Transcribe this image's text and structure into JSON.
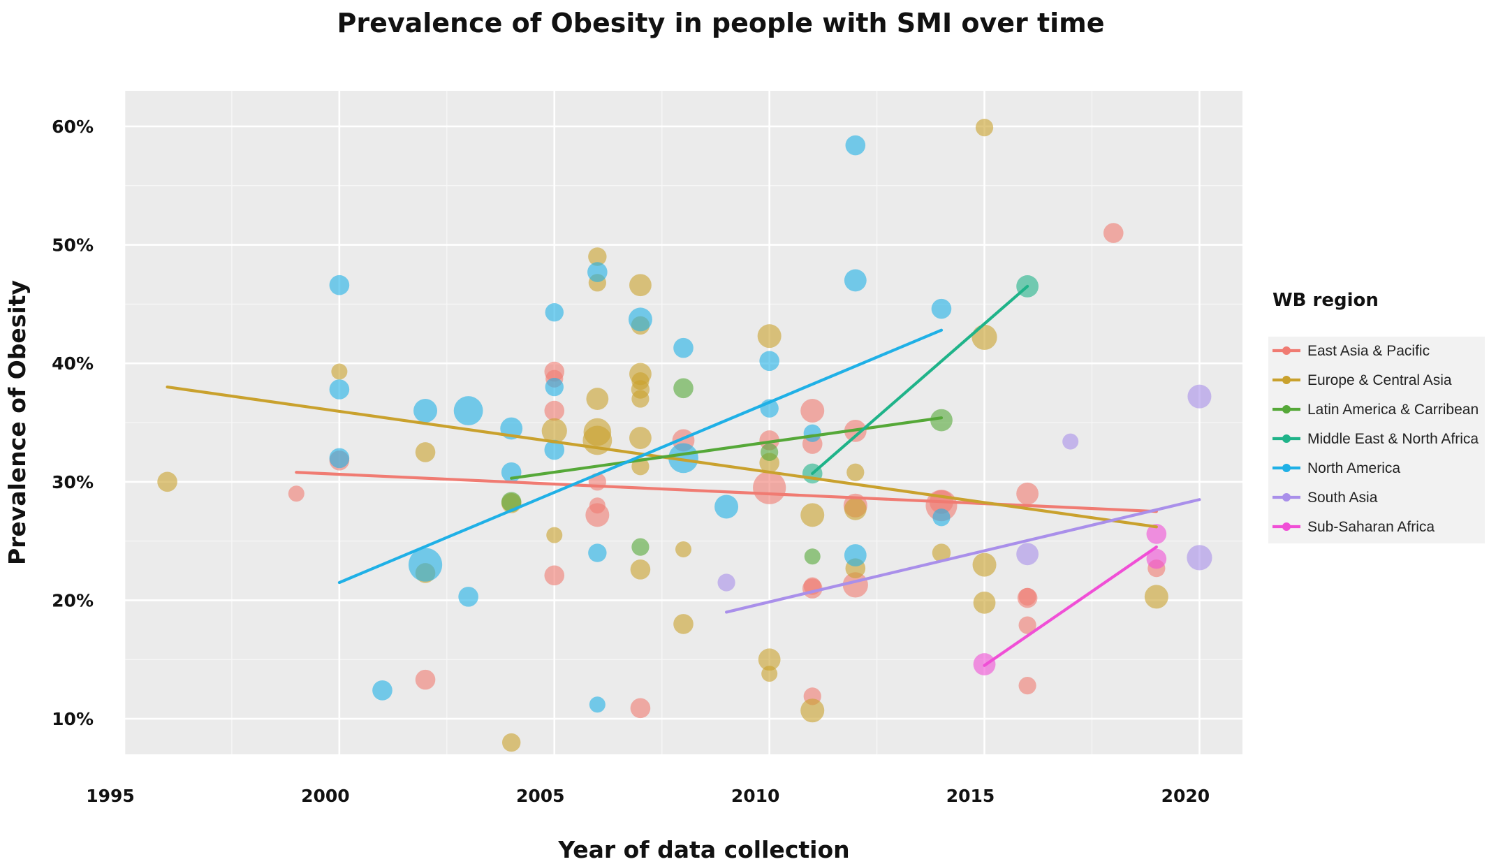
{
  "chart_data": {
    "type": "scatter",
    "title": "Prevalence of Obesity in people with SMI over time",
    "xlabel": "Year of data collection",
    "ylabel": "Prevalence of Obesity",
    "xlim": [
      1995,
      2021
    ],
    "ylim": [
      0.07,
      0.63
    ],
    "x_ticks": [
      1995,
      2000,
      2005,
      2010,
      2015,
      2020
    ],
    "x_tick_labels": [
      "1995",
      "2000",
      "2005",
      "2010",
      "2015",
      "2020"
    ],
    "y_ticks": [
      0.1,
      0.2,
      0.3,
      0.4,
      0.5,
      0.6
    ],
    "y_tick_labels": [
      "10%",
      "20%",
      "30%",
      "40%",
      "50%",
      "60%"
    ],
    "grid": true,
    "legend_title": "WB region",
    "legend_position": "right",
    "series": [
      {
        "name": "East Asia & Pacific",
        "color": "#f07b72",
        "trend": [
          [
            1999,
            0.308
          ],
          [
            2019,
            0.275
          ]
        ],
        "points": [
          [
            1999,
            0.29,
            1
          ],
          [
            2000,
            0.318,
            1.5
          ],
          [
            2002,
            0.133,
            1.5
          ],
          [
            2005,
            0.393,
            1.5
          ],
          [
            2005,
            0.387,
            1.2
          ],
          [
            2005,
            0.36,
            1.5
          ],
          [
            2005,
            0.221,
            1.5
          ],
          [
            2006,
            0.3,
            1.2
          ],
          [
            2006,
            0.272,
            2
          ],
          [
            2006,
            0.28,
            1
          ],
          [
            2007,
            0.109,
            1.5
          ],
          [
            2008,
            0.335,
            1.8
          ],
          [
            2010,
            0.335,
            1.5
          ],
          [
            2010,
            0.295,
            3.2
          ],
          [
            2011,
            0.36,
            2
          ],
          [
            2011,
            0.332,
            1.5
          ],
          [
            2011,
            0.21,
            1.5
          ],
          [
            2011,
            0.212,
            1.2
          ],
          [
            2011,
            0.119,
            1.2
          ],
          [
            2012,
            0.343,
            1.8
          ],
          [
            2012,
            0.28,
            2
          ],
          [
            2012,
            0.213,
            2.2
          ],
          [
            2014,
            0.28,
            3
          ],
          [
            2014,
            0.283,
            2
          ],
          [
            2016,
            0.29,
            1.8
          ],
          [
            2016,
            0.202,
            1.5
          ],
          [
            2016,
            0.203,
            1.2
          ],
          [
            2016,
            0.179,
            1.2
          ],
          [
            2016,
            0.128,
            1.2
          ],
          [
            2018,
            0.51,
            1.5
          ],
          [
            2019,
            0.227,
            1.2
          ]
        ]
      },
      {
        "name": "Europe & Central Asia",
        "color": "#c9a12d",
        "trend": [
          [
            1996,
            0.38
          ],
          [
            2019,
            0.262
          ]
        ],
        "points": [
          [
            1996,
            0.3,
            1.5
          ],
          [
            2000,
            0.393,
            1
          ],
          [
            2002,
            0.325,
            1.5
          ],
          [
            2002,
            0.223,
            1.5
          ],
          [
            2004,
            0.282,
            1.5
          ],
          [
            2004,
            0.08,
            1.3
          ],
          [
            2005,
            0.343,
            2.2
          ],
          [
            2005,
            0.255,
            1
          ],
          [
            2006,
            0.49,
            1.3
          ],
          [
            2006,
            0.468,
            1.2
          ],
          [
            2006,
            0.37,
            1.8
          ],
          [
            2006,
            0.342,
            2.5
          ],
          [
            2006,
            0.335,
            2.7
          ],
          [
            2007,
            0.466,
            1.8
          ],
          [
            2007,
            0.432,
            1.3
          ],
          [
            2007,
            0.391,
            1.8
          ],
          [
            2007,
            0.385,
            1.2
          ],
          [
            2007,
            0.378,
            1.3
          ],
          [
            2007,
            0.37,
            1.2
          ],
          [
            2007,
            0.337,
            1.8
          ],
          [
            2007,
            0.313,
            1.2
          ],
          [
            2007,
            0.226,
            1.5
          ],
          [
            2008,
            0.243,
            1
          ],
          [
            2008,
            0.18,
            1.5
          ],
          [
            2010,
            0.423,
            2
          ],
          [
            2010,
            0.316,
            1.5
          ],
          [
            2010,
            0.15,
            1.8
          ],
          [
            2010,
            0.138,
            1
          ],
          [
            2011,
            0.272,
            2
          ],
          [
            2011,
            0.107,
            2
          ],
          [
            2012,
            0.308,
            1.2
          ],
          [
            2012,
            0.277,
            1.8
          ],
          [
            2012,
            0.227,
            1.5
          ],
          [
            2014,
            0.24,
            1.3
          ],
          [
            2015,
            0.599,
            1.2
          ],
          [
            2015,
            0.422,
            2.2
          ],
          [
            2015,
            0.23,
            2
          ],
          [
            2015,
            0.198,
            1.8
          ],
          [
            2019,
            0.203,
            2
          ]
        ]
      },
      {
        "name": "Latin America & Carribean",
        "color": "#55a838",
        "trend": [
          [
            2004,
            0.303
          ],
          [
            2014,
            0.354
          ]
        ],
        "points": [
          [
            2004,
            0.283,
            1.5
          ],
          [
            2007,
            0.245,
            1.2
          ],
          [
            2008,
            0.379,
            1.5
          ],
          [
            2010,
            0.325,
            1.2
          ],
          [
            2011,
            0.237,
            1
          ],
          [
            2014,
            0.352,
            1.8
          ]
        ]
      },
      {
        "name": "Middle East & North Africa",
        "color": "#1fb389",
        "trend": [
          [
            2011,
            0.307
          ],
          [
            2016,
            0.465
          ]
        ],
        "points": [
          [
            2011,
            0.307,
            1.5
          ],
          [
            2016,
            0.465,
            1.8
          ]
        ]
      },
      {
        "name": "North America",
        "color": "#1fb0e6",
        "trend": [
          [
            2000,
            0.215
          ],
          [
            2014,
            0.428
          ]
        ],
        "points": [
          [
            2000,
            0.466,
            1.5
          ],
          [
            2000,
            0.378,
            1.5
          ],
          [
            2000,
            0.32,
            1.5
          ],
          [
            2001,
            0.124,
            1.5
          ],
          [
            2002,
            0.36,
            2
          ],
          [
            2002,
            0.23,
            3.3
          ],
          [
            2003,
            0.36,
            2.7
          ],
          [
            2003,
            0.203,
            1.5
          ],
          [
            2004,
            0.345,
            1.8
          ],
          [
            2004,
            0.308,
            1.5
          ],
          [
            2005,
            0.443,
            1.3
          ],
          [
            2005,
            0.38,
            1.3
          ],
          [
            2005,
            0.327,
            1.5
          ],
          [
            2006,
            0.477,
            1.5
          ],
          [
            2006,
            0.24,
            1.3
          ],
          [
            2006,
            0.112,
            1
          ],
          [
            2007,
            0.437,
            2
          ],
          [
            2008,
            0.413,
            1.5
          ],
          [
            2008,
            0.32,
            2.8
          ],
          [
            2009,
            0.279,
            2
          ],
          [
            2010,
            0.402,
            1.5
          ],
          [
            2010,
            0.362,
            1.3
          ],
          [
            2011,
            0.341,
            1.2
          ],
          [
            2012,
            0.584,
            1.5
          ],
          [
            2012,
            0.47,
            1.8
          ],
          [
            2012,
            0.238,
            1.8
          ],
          [
            2014,
            0.446,
            1.5
          ],
          [
            2014,
            0.27,
            1.2
          ]
        ]
      },
      {
        "name": "South Asia",
        "color": "#a98fea",
        "trend": [
          [
            2009,
            0.19
          ],
          [
            2020,
            0.285
          ]
        ],
        "points": [
          [
            2009,
            0.215,
            1.2
          ],
          [
            2016,
            0.239,
            1.8
          ],
          [
            2017,
            0.334,
            1
          ],
          [
            2020,
            0.372,
            2
          ],
          [
            2020,
            0.236,
            2.2
          ]
        ]
      },
      {
        "name": "Sub-Saharan Africa",
        "color": "#f04fd6",
        "trend": [
          [
            2015,
            0.145
          ],
          [
            2019,
            0.245
          ]
        ],
        "points": [
          [
            2015,
            0.146,
            1.8
          ],
          [
            2019,
            0.256,
            1.5
          ],
          [
            2019,
            0.235,
            1.5
          ]
        ]
      }
    ]
  }
}
